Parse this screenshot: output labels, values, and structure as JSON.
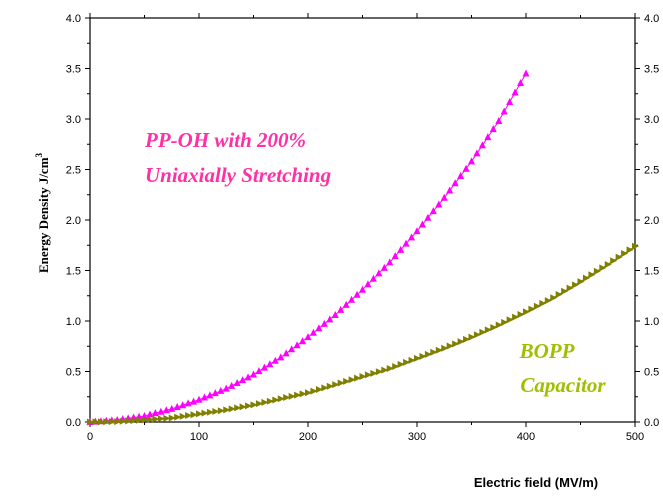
{
  "chart_data": {
    "type": "scatter",
    "title": "",
    "xlabel": "Electric field (MV/m)",
    "ylabel": "Energy Density   J/cm",
    "ylabel_superscript": "3",
    "xlim": [
      0,
      500
    ],
    "ylim": [
      0,
      4.0
    ],
    "x_ticks": [
      "0",
      "100",
      "200",
      "300",
      "400",
      "500"
    ],
    "y_ticks": [
      "0.0",
      "0.5",
      "1.0",
      "1.5",
      "2.0",
      "2.5",
      "3.0",
      "3.5",
      "4.0"
    ],
    "right_axis_ticks": [
      "0.0",
      "0.5",
      "1.0",
      "1.5",
      "2.0",
      "2.5",
      "3.0",
      "3.5",
      "4.0"
    ],
    "grid": false,
    "annotations": [
      {
        "lines": [
          "PP-OH with 200%",
          "Uniaxially Stretching"
        ],
        "color": "#ff2fa6"
      },
      {
        "lines": [
          "BOPP",
          "Capacitor"
        ],
        "color": "#9fbf00"
      }
    ],
    "series": [
      {
        "color": "#ff00ff",
        "marker": "triangle-up",
        "x": [
          0,
          25,
          50,
          75,
          100,
          125,
          150,
          175,
          200,
          225,
          250,
          275,
          300,
          325,
          350,
          375,
          400
        ],
        "y": [
          0.0,
          0.02,
          0.06,
          0.13,
          0.22,
          0.33,
          0.47,
          0.64,
          0.84,
          1.06,
          1.31,
          1.58,
          1.89,
          2.22,
          2.58,
          2.98,
          3.45
        ]
      },
      {
        "color": "#808000",
        "marker": "triangle-right",
        "x": [
          0,
          25,
          50,
          75,
          100,
          125,
          150,
          175,
          200,
          225,
          250,
          275,
          300,
          325,
          350,
          375,
          400,
          425,
          450,
          475,
          500
        ],
        "y": [
          0.0,
          0.004,
          0.02,
          0.04,
          0.08,
          0.12,
          0.17,
          0.23,
          0.29,
          0.37,
          0.45,
          0.53,
          0.63,
          0.73,
          0.84,
          0.96,
          1.09,
          1.23,
          1.39,
          1.56,
          1.74
        ]
      }
    ]
  }
}
